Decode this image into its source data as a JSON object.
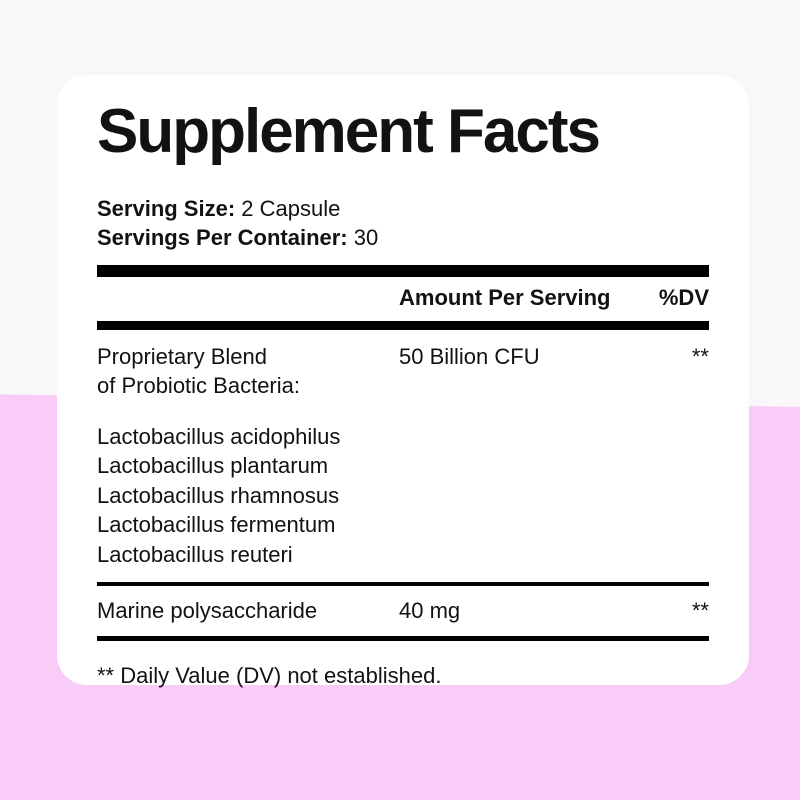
{
  "colors": {
    "bg_top": "#faf7fa",
    "bg_bottom": "#f8ccf6",
    "card_bg": "#ffffff",
    "text": "#121212",
    "rule": "#000000"
  },
  "panel": {
    "title": "Supplement Facts",
    "serving": {
      "size_label": "Serving Size:",
      "size_value": "2 Capsule",
      "per_container_label": "Servings Per Container:",
      "per_container_value": "30"
    },
    "columns": {
      "amount": "Amount Per Serving",
      "dv": "%DV"
    },
    "proprietary": {
      "name_line1": "Proprietary Blend",
      "name_line2": "of Probiotic Bacteria:",
      "amount": "50 Billion CFU",
      "dv": "**"
    },
    "probiotics": [
      "Lactobacillus acidophilus",
      "Lactobacillus plantarum",
      "Lactobacillus rhamnosus",
      "Lactobacillus fermentum",
      "Lactobacillus reuteri"
    ],
    "marine": {
      "name": "Marine polysaccharide",
      "amount": "40 mg",
      "dv": "**"
    },
    "footnote": "** Daily Value (DV) not established."
  }
}
